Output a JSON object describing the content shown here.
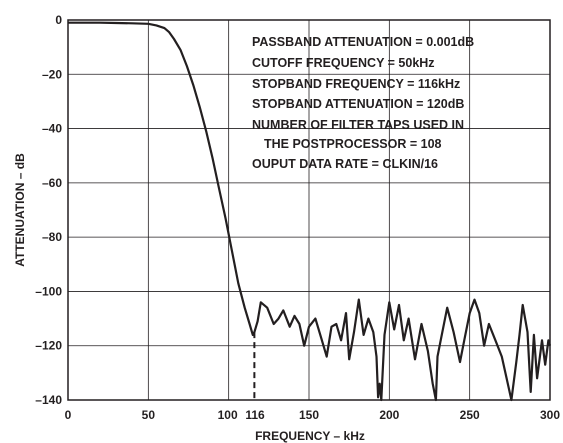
{
  "chart_data": {
    "type": "line",
    "title": "",
    "xlabel": "FREQUENCY – kHz",
    "ylabel": "ATTENUATION – dB",
    "xlim": [
      0,
      300
    ],
    "ylim": [
      -140,
      0
    ],
    "x_ticks": [
      {
        "value": 0,
        "label": "0"
      },
      {
        "value": 50,
        "label": "50"
      },
      {
        "value": 100,
        "label": "100"
      },
      {
        "value": 116,
        "label": "116"
      },
      {
        "value": 150,
        "label": "150"
      },
      {
        "value": 200,
        "label": "200"
      },
      {
        "value": 250,
        "label": "250"
      },
      {
        "value": 300,
        "label": "300"
      }
    ],
    "y_ticks": [
      {
        "value": 0,
        "label": "0"
      },
      {
        "value": -20,
        "label": "–20"
      },
      {
        "value": -40,
        "label": "–40"
      },
      {
        "value": -60,
        "label": "–60"
      },
      {
        "value": -80,
        "label": "–80"
      },
      {
        "value": -100,
        "label": "–100"
      },
      {
        "value": -120,
        "label": "–120"
      },
      {
        "value": -140,
        "label": "–140"
      }
    ],
    "grid_x": [
      0,
      50,
      100,
      150,
      200,
      250,
      300
    ],
    "grid_y": [
      0,
      -20,
      -40,
      -60,
      -80,
      -100,
      -120,
      -140
    ],
    "grid": true,
    "line_color": "#231f20",
    "annotations": [
      "PASSBAND ATTENUATION = 0.001dB",
      "CUTOFF FREQUENCY = 50kHz",
      "STOPBAND FREQUENCY = 116kHz",
      "STOPBAND ATTENUATION = 120dB",
      "NUMBER OF FILTER TAPS USED IN",
      "THE POSTPROCESSOR = 108",
      "OUPUT DATA RATE = CLKIN/16"
    ],
    "marker": {
      "x": 116,
      "y_from": -115,
      "y_to": -140,
      "style": "dashed"
    },
    "series": [
      {
        "x": [
          0,
          10,
          20,
          30,
          40,
          50,
          55,
          60,
          63,
          66,
          70,
          74,
          78,
          82,
          86,
          90,
          94,
          98,
          102,
          106,
          110,
          113,
          115,
          116,
          118,
          120,
          124,
          128,
          131,
          134,
          138,
          141,
          144,
          147,
          150,
          154,
          158,
          161,
          164,
          167,
          170,
          173,
          175,
          178,
          181,
          184,
          187,
          190,
          192,
          193,
          194,
          195,
          197,
          200,
          203,
          206,
          209,
          212,
          216,
          220,
          224,
          227,
          229,
          230,
          232,
          236,
          240,
          244,
          247,
          250,
          253,
          256,
          259,
          262,
          266,
          270,
          273,
          276,
          279,
          281,
          283,
          286,
          288,
          290,
          292,
          295,
          297,
          299,
          300
        ],
        "y": [
          -1,
          -1,
          -1,
          -1.1,
          -1.2,
          -1.4,
          -2,
          -3,
          -4.5,
          -7,
          -11,
          -17,
          -24,
          -32,
          -41,
          -51,
          -62,
          -73,
          -85,
          -97,
          -106,
          -112,
          -116,
          -115,
          -111,
          -104,
          -106,
          -112,
          -110,
          -107,
          -113,
          -109,
          -112,
          -120,
          -113,
          -110,
          -118,
          -124,
          -113,
          -112,
          -118,
          -108,
          -125,
          -115,
          -103,
          -116,
          -110,
          -115,
          -124,
          -139,
          -134,
          -140,
          -116,
          -104,
          -114,
          -105,
          -118,
          -110,
          -125,
          -112,
          -122,
          -134,
          -140,
          -124,
          -118,
          -106,
          -115,
          -126,
          -117,
          -108,
          -103,
          -108,
          -120,
          -112,
          -118,
          -124,
          -132,
          -140,
          -126,
          -116,
          -105,
          -115,
          -137,
          -116,
          -132,
          -118,
          -127,
          -118,
          -120
        ]
      }
    ]
  }
}
